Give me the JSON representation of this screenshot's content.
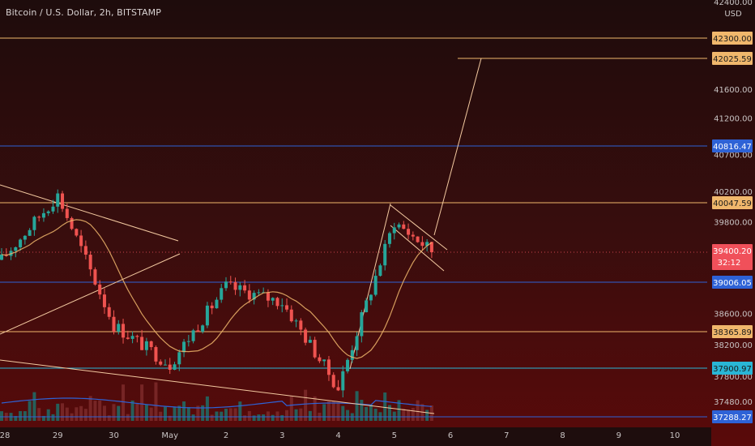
{
  "header": {
    "title": "Bitcoin / U.S. Dollar, 2h, BITSTAMP"
  },
  "y_axis": {
    "currency_label": "USD",
    "top_cut_label": "42400.00",
    "ticks": [
      "42300.00",
      "41600.00",
      "41200.00",
      "40700.00",
      "40200.00",
      "39800.00",
      "38600.00",
      "38200.00",
      "37800.00",
      "37480.00"
    ]
  },
  "x_axis": {
    "labels": [
      "28",
      "29",
      "30",
      "May",
      "2",
      "3",
      "4",
      "5",
      "6",
      "7",
      "8",
      "9",
      "10"
    ]
  },
  "price_line": {
    "price": "39400.20",
    "countdown": "32:12",
    "color": "#f0505a"
  },
  "horizontal_levels": [
    {
      "label": "42300.00",
      "price": 42300,
      "color": "#f0b76c"
    },
    {
      "label": "42025.59",
      "price": 42025.59,
      "color": "#f0b76c"
    },
    {
      "label": "40816.47",
      "price": 40816.47,
      "color": "#2e62d6"
    },
    {
      "label": "40047.59",
      "price": 40047.59,
      "color": "#f0b76c"
    },
    {
      "label": "39006.05",
      "price": 39006.05,
      "color": "#2e62d6"
    },
    {
      "label": "38365.89",
      "price": 38365.89,
      "color": "#f0b76c"
    },
    {
      "label": "37900.97",
      "price": 37900.97,
      "color": "#29b6d6"
    },
    {
      "label": "37288.27",
      "price": 37288.27,
      "color": "#2e62d6"
    }
  ],
  "chart_data": {
    "type": "candlestick",
    "title": "Bitcoin / U.S. Dollar, 2h, BITSTAMP",
    "x_labels": [
      "28",
      "29",
      "30",
      "May",
      "2",
      "3",
      "4",
      "5",
      "6",
      "7",
      "8",
      "9",
      "10"
    ],
    "ylim": [
      37200,
      42500
    ],
    "last_price": 39400.2,
    "price_levels": [
      42300,
      42025.59,
      40816.47,
      40047.59,
      39006.05,
      38365.89,
      37900.97,
      37288.27
    ],
    "key_points": [
      {
        "x_day": 0.0,
        "close": 39300
      },
      {
        "x_day": 1.0,
        "close": 40150
      },
      {
        "x_day": 2.0,
        "close": 38450
      },
      {
        "x_day": 3.0,
        "close": 37950
      },
      {
        "x_day": 4.0,
        "close": 38950
      },
      {
        "x_day": 5.0,
        "close": 38750
      },
      {
        "x_day": 6.0,
        "close": 37650
      },
      {
        "x_day": 7.0,
        "close": 39800
      },
      {
        "x_day": 7.7,
        "close": 39400
      }
    ],
    "colors": {
      "up": "#26a69a",
      "down": "#ef5350",
      "ma": "#f0b76c"
    }
  }
}
